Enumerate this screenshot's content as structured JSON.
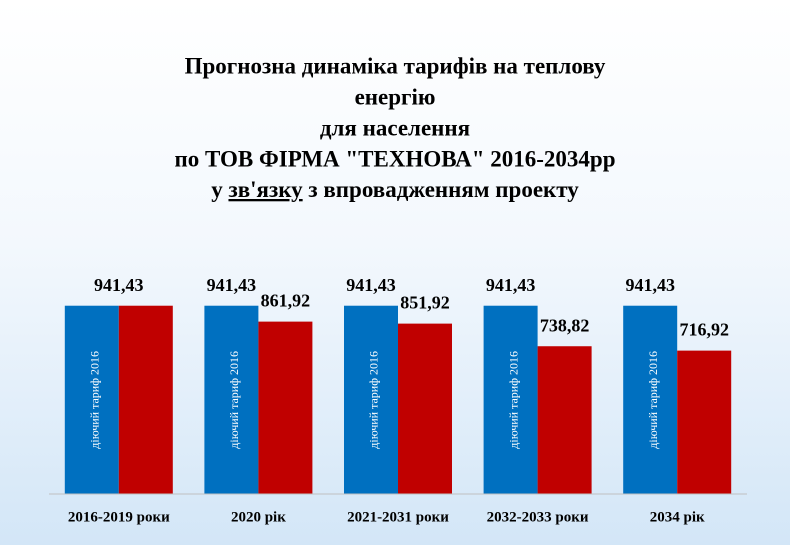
{
  "chart_data": {
    "type": "bar",
    "title": [
      "Прогнозна динаміка тарифів на теплову",
      "енергію",
      "для населення",
      "по ТОВ ФІРМА \"ТЕХНОВА\" 2016-2034рр",
      "у зв'язку з впровадженням проекту"
    ],
    "categories": [
      "2016-2019 роки",
      "2020 рік",
      "2021-2031 роки",
      "2032-2033 роки",
      "2034 рік"
    ],
    "series": [
      {
        "name": "діючий тариф 2016",
        "color": "#0070c0",
        "values": [
          941.43,
          941.43,
          941.43,
          941.43,
          941.43
        ],
        "value_labels": [
          null,
          "941,43",
          "941,43",
          "941,43",
          "941,43"
        ]
      },
      {
        "color": "#c00000",
        "values": [
          941.43,
          861.92,
          851.92,
          738.82,
          716.92
        ],
        "value_labels": [
          "941,43",
          "861,92",
          "851,92",
          "738,82",
          "716,92"
        ]
      }
    ],
    "ylim": [
      0,
      1000
    ]
  }
}
